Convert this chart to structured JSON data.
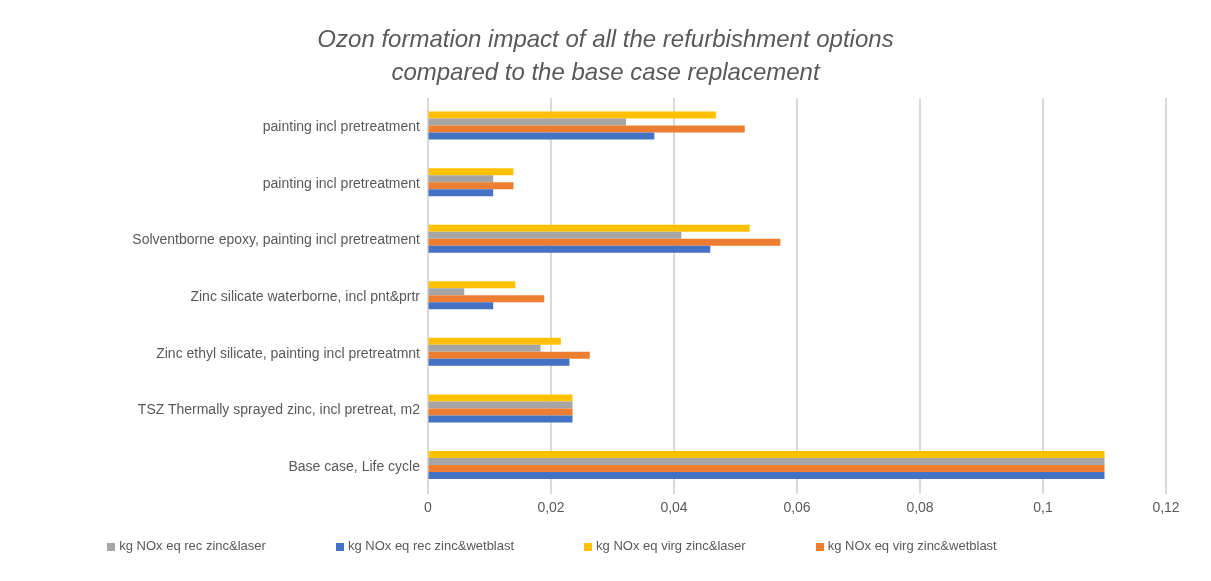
{
  "chart_data": {
    "type": "bar",
    "orientation": "horizontal",
    "title": "Ozon formation impact of all the refurbishment options compared to the base case replacement",
    "categories": [
      "painting incl pretreatment",
      "painting incl pretreatment",
      "Solventborne epoxy, painting incl pretreatment",
      "Zinc silicate waterborne, incl pnt&prtr",
      "Zinc ethyl silicate, painting incl pretreatmnt",
      "TSZ Thermally sprayed zinc, incl pretreat, m2",
      "Base case, Life cycle"
    ],
    "series": [
      {
        "name": "kg NOx eq virg zinc&laser",
        "color": "#ffc000",
        "values": [
          0.0468,
          0.0139,
          0.0523,
          0.0142,
          0.0216,
          0.0235,
          0.11
        ]
      },
      {
        "name": "kg NOx eq rec zinc&laser",
        "color": "#a5a5a5",
        "values": [
          0.0322,
          0.0106,
          0.0412,
          0.0059,
          0.0183,
          0.0235,
          0.11
        ]
      },
      {
        "name": "kg NOx eq virg zinc&wetblast",
        "color": "#ed7d31",
        "values": [
          0.0515,
          0.0139,
          0.0573,
          0.0189,
          0.0263,
          0.0235,
          0.11
        ]
      },
      {
        "name": "kg NOx eq rec zinc&wetblast",
        "color": "#4472c4",
        "values": [
          0.0368,
          0.0106,
          0.0459,
          0.0106,
          0.023,
          0.0235,
          0.11
        ]
      }
    ],
    "xlim": [
      0,
      0.12
    ],
    "xticks": [
      {
        "value": 0,
        "label": "0"
      },
      {
        "value": 0.02,
        "label": "0,02"
      },
      {
        "value": 0.04,
        "label": "0,04"
      },
      {
        "value": 0.06,
        "label": "0,06"
      },
      {
        "value": 0.08,
        "label": "0,08"
      },
      {
        "value": 0.1,
        "label": "0,1"
      },
      {
        "value": 0.12,
        "label": "0,12"
      }
    ],
    "grid": "x",
    "legend": "bottom"
  }
}
